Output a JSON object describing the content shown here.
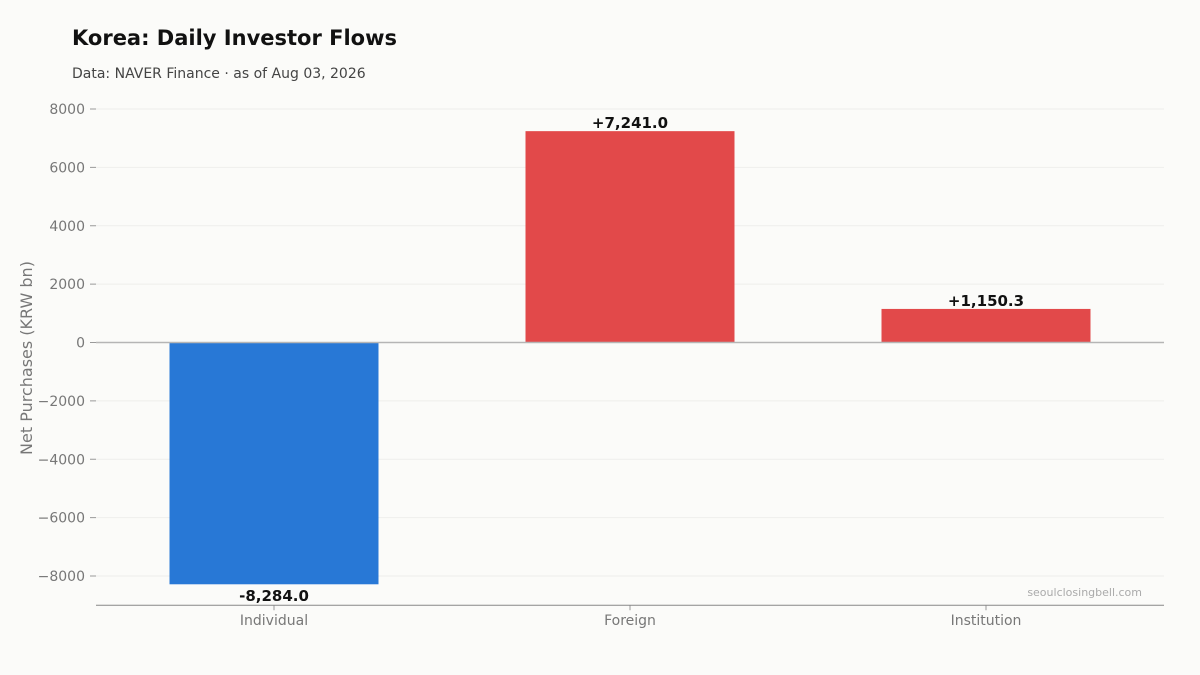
{
  "title": "Korea: Daily Investor Flows",
  "subtitle": "Data: NAVER Finance · as of Aug 03, 2026",
  "watermark": "seoulclosingbell.com",
  "colors": {
    "negative": "#2878d6",
    "positive": "#e2494a",
    "grid": "#eeeeec",
    "zero_line": "#b5b5b5",
    "axis_line": "#888888"
  },
  "chart_data": {
    "type": "bar",
    "categories": [
      "Individual",
      "Foreign",
      "Institution"
    ],
    "values": [
      -8284.0,
      7241.0,
      1150.3
    ],
    "data_labels": [
      "-8,284.0",
      "+7,241.0",
      "+1,150.3"
    ],
    "ylabel": "Net Purchases (KRW bn)",
    "xlabel": "",
    "ylim": [
      -9000,
      8000
    ],
    "yticks": [
      8000,
      6000,
      4000,
      2000,
      0,
      -2000,
      -4000,
      -6000,
      -8000
    ],
    "ytick_labels": [
      "8000",
      "6000",
      "4000",
      "2000",
      "0",
      "−2000",
      "−4000",
      "−6000",
      "−8000"
    ],
    "grid": true,
    "legend": "none"
  }
}
